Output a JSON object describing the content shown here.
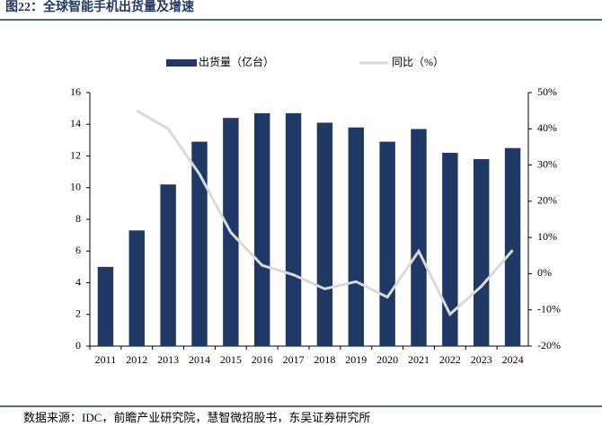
{
  "chart_data": {
    "type": "bar-line",
    "title": "图22：全球智能手机出货量及增速",
    "source": "数据来源：IDC，前瞻产业研究院，慧智微招股书，东吴证券研究所",
    "categories": [
      "2011",
      "2012",
      "2013",
      "2014",
      "2015",
      "2016",
      "2017",
      "2018",
      "2019",
      "2020",
      "2021",
      "2022",
      "2023",
      "2024"
    ],
    "series": [
      {
        "name": "出货量（亿台）",
        "color": "#1f3864",
        "type": "bar",
        "values": [
          5.0,
          7.3,
          10.2,
          12.9,
          14.4,
          14.7,
          14.7,
          14.1,
          13.8,
          12.9,
          13.7,
          12.2,
          11.8,
          12.5
        ]
      },
      {
        "name": "同比（%）",
        "color": "#d9d9d9",
        "type": "line",
        "axis": "y2",
        "values": [
          null,
          45,
          40,
          27.5,
          11.4,
          2.3,
          -0.3,
          -4.2,
          -2.2,
          -6.5,
          6.2,
          -11.2,
          -3.5,
          6.5
        ]
      }
    ],
    "ylim": [
      0,
      16
    ],
    "yticks": [
      0,
      2,
      4,
      6,
      8,
      10,
      12,
      14,
      16
    ],
    "y2lim": [
      -20,
      50
    ],
    "y2ticks": [
      {
        "value": -20,
        "label": "-20%"
      },
      {
        "value": -10,
        "label": "-10%"
      },
      {
        "value": 0,
        "label": "0%"
      },
      {
        "value": 10,
        "label": "10%"
      },
      {
        "value": 20,
        "label": "20%"
      },
      {
        "value": 30,
        "label": "30%"
      },
      {
        "value": 40,
        "label": "40%"
      },
      {
        "value": 50,
        "label": "50%"
      }
    ],
    "legend": "top"
  }
}
